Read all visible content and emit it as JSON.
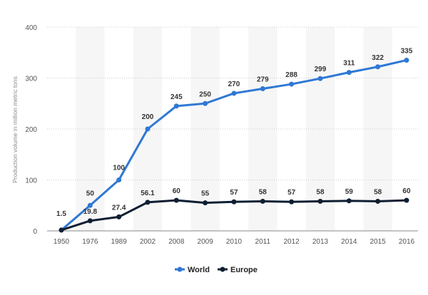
{
  "chart_data": {
    "type": "line",
    "title": "",
    "xlabel": "",
    "ylabel": "Production volume in million metric tons",
    "categories": [
      "1950",
      "1976",
      "1989",
      "2002",
      "2008",
      "2009",
      "2010",
      "2011",
      "2012",
      "2013",
      "2014",
      "2015",
      "2016"
    ],
    "ylim": [
      0,
      400
    ],
    "yticks": [
      0,
      100,
      200,
      300,
      400
    ],
    "grid": true,
    "legend": "bottom-center",
    "series": [
      {
        "name": "World",
        "color": "#2f78d4",
        "values": [
          1.5,
          50,
          100,
          200,
          245,
          250,
          270,
          279,
          288,
          299,
          311,
          322,
          335
        ]
      },
      {
        "name": "Europe",
        "color": "#0f1f33",
        "values": [
          1.5,
          19.8,
          27.4,
          56.1,
          60,
          55,
          57,
          58,
          57,
          58,
          59,
          58,
          60
        ]
      }
    ],
    "data_labels": {
      "World": [
        "1.5",
        "50",
        "100",
        "200",
        "245",
        "250",
        "270",
        "279",
        "288",
        "299",
        "311",
        "322",
        "335"
      ],
      "Europe": [
        "",
        "19.8",
        "27.4",
        "56.1",
        "60",
        "55",
        "57",
        "58",
        "57",
        "58",
        "59",
        "58",
        "60"
      ]
    }
  }
}
